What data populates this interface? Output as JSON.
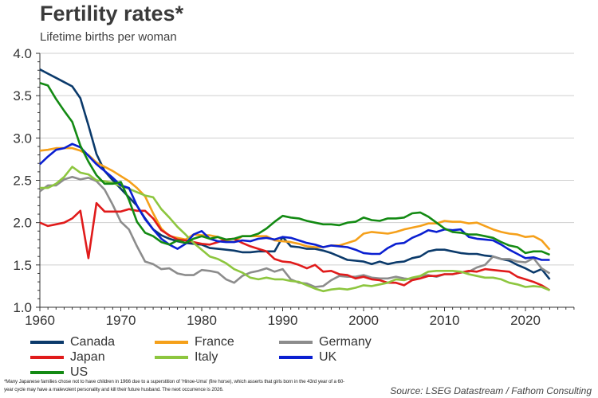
{
  "chart_data": {
    "type": "line",
    "title": "Fertility rates*",
    "subtitle": "Lifetime births per woman",
    "xlabel": "",
    "ylabel": "",
    "xlim": [
      1960,
      2026
    ],
    "ylim": [
      1.0,
      4.0
    ],
    "xticks": [
      1960,
      1970,
      1980,
      1990,
      2000,
      2010,
      2020
    ],
    "yticks": [
      "1.0",
      "1.5",
      "2.0",
      "2.5",
      "3.0",
      "3.5",
      "4.0"
    ],
    "grid": "horizontal",
    "legend_position": "bottom",
    "x": [
      1960,
      1961,
      1962,
      1963,
      1964,
      1965,
      1966,
      1967,
      1968,
      1969,
      1970,
      1971,
      1972,
      1973,
      1974,
      1975,
      1976,
      1977,
      1978,
      1979,
      1980,
      1981,
      1982,
      1983,
      1984,
      1985,
      1986,
      1987,
      1988,
      1989,
      1990,
      1991,
      1992,
      1993,
      1994,
      1995,
      1996,
      1997,
      1998,
      1999,
      2000,
      2001,
      2002,
      2003,
      2004,
      2005,
      2006,
      2007,
      2008,
      2009,
      2010,
      2011,
      2012,
      2013,
      2014,
      2015,
      2016,
      2017,
      2018,
      2019,
      2020,
      2021,
      2022,
      2023
    ],
    "series": [
      {
        "name": "Canada",
        "color": "#0b3a6b",
        "values": [
          3.81,
          3.76,
          3.71,
          3.66,
          3.61,
          3.47,
          3.15,
          2.81,
          2.61,
          2.5,
          2.4,
          2.3,
          2.2,
          2.05,
          1.92,
          1.85,
          1.81,
          1.78,
          1.76,
          1.75,
          1.74,
          1.7,
          1.69,
          1.68,
          1.67,
          1.65,
          1.65,
          1.66,
          1.66,
          1.66,
          1.83,
          1.72,
          1.71,
          1.69,
          1.69,
          1.67,
          1.64,
          1.6,
          1.56,
          1.55,
          1.54,
          1.51,
          1.54,
          1.51,
          1.53,
          1.54,
          1.58,
          1.6,
          1.66,
          1.68,
          1.68,
          1.66,
          1.64,
          1.63,
          1.63,
          1.61,
          1.6,
          1.57,
          1.55,
          1.5,
          1.46,
          1.41,
          1.45,
          1.33
        ]
      },
      {
        "name": "France",
        "color": "#f5a01a",
        "values": [
          2.85,
          2.86,
          2.88,
          2.88,
          2.88,
          2.85,
          2.8,
          2.71,
          2.66,
          2.61,
          2.55,
          2.49,
          2.41,
          2.31,
          2.11,
          1.93,
          1.84,
          1.82,
          1.8,
          1.86,
          1.85,
          1.85,
          1.83,
          1.78,
          1.77,
          1.84,
          1.84,
          1.84,
          1.84,
          1.79,
          1.78,
          1.77,
          1.75,
          1.72,
          1.71,
          1.71,
          1.73,
          1.73,
          1.76,
          1.79,
          1.87,
          1.89,
          1.88,
          1.87,
          1.89,
          1.92,
          1.94,
          1.96,
          1.99,
          1.99,
          2.02,
          2.01,
          2.01,
          1.99,
          2.0,
          1.96,
          1.92,
          1.89,
          1.87,
          1.86,
          1.83,
          1.84,
          1.79,
          1.68
        ]
      },
      {
        "name": "Germany",
        "color": "#8c8c8c",
        "values": [
          2.37,
          2.44,
          2.44,
          2.51,
          2.54,
          2.51,
          2.53,
          2.49,
          2.39,
          2.21,
          2.01,
          1.92,
          1.72,
          1.54,
          1.51,
          1.45,
          1.46,
          1.4,
          1.38,
          1.38,
          1.44,
          1.43,
          1.41,
          1.33,
          1.29,
          1.37,
          1.41,
          1.43,
          1.46,
          1.42,
          1.45,
          1.33,
          1.29,
          1.28,
          1.24,
          1.25,
          1.32,
          1.37,
          1.36,
          1.36,
          1.38,
          1.35,
          1.34,
          1.34,
          1.36,
          1.34,
          1.33,
          1.37,
          1.38,
          1.36,
          1.39,
          1.39,
          1.41,
          1.42,
          1.47,
          1.5,
          1.6,
          1.57,
          1.57,
          1.54,
          1.53,
          1.58,
          1.46,
          1.4
        ]
      },
      {
        "name": "Japan",
        "color": "#e01b1b",
        "values": [
          2.0,
          1.96,
          1.98,
          2.0,
          2.05,
          2.14,
          1.58,
          2.23,
          2.13,
          2.13,
          2.13,
          2.16,
          2.14,
          2.14,
          2.05,
          1.91,
          1.85,
          1.8,
          1.79,
          1.77,
          1.75,
          1.74,
          1.77,
          1.8,
          1.81,
          1.76,
          1.72,
          1.69,
          1.66,
          1.57,
          1.54,
          1.53,
          1.5,
          1.46,
          1.5,
          1.42,
          1.43,
          1.39,
          1.38,
          1.34,
          1.36,
          1.33,
          1.32,
          1.29,
          1.29,
          1.26,
          1.32,
          1.34,
          1.37,
          1.37,
          1.39,
          1.39,
          1.41,
          1.43,
          1.42,
          1.45,
          1.44,
          1.43,
          1.42,
          1.36,
          1.33,
          1.3,
          1.26,
          1.2
        ]
      },
      {
        "name": "Italy",
        "color": "#8dc63f",
        "values": [
          2.41,
          2.41,
          2.46,
          2.54,
          2.66,
          2.59,
          2.57,
          2.5,
          2.49,
          2.47,
          2.43,
          2.4,
          2.36,
          2.32,
          2.3,
          2.16,
          2.06,
          1.95,
          1.86,
          1.76,
          1.68,
          1.6,
          1.57,
          1.52,
          1.45,
          1.41,
          1.35,
          1.33,
          1.35,
          1.33,
          1.33,
          1.31,
          1.3,
          1.26,
          1.22,
          1.19,
          1.21,
          1.22,
          1.21,
          1.23,
          1.26,
          1.25,
          1.27,
          1.29,
          1.33,
          1.32,
          1.35,
          1.37,
          1.42,
          1.43,
          1.43,
          1.43,
          1.42,
          1.39,
          1.37,
          1.35,
          1.35,
          1.33,
          1.29,
          1.27,
          1.24,
          1.25,
          1.24,
          1.2
        ]
      },
      {
        "name": "UK",
        "color": "#0a1fd1",
        "values": [
          2.69,
          2.78,
          2.86,
          2.88,
          2.93,
          2.89,
          2.79,
          2.69,
          2.61,
          2.53,
          2.44,
          2.41,
          2.2,
          2.04,
          1.92,
          1.81,
          1.74,
          1.69,
          1.75,
          1.86,
          1.9,
          1.81,
          1.78,
          1.77,
          1.77,
          1.79,
          1.78,
          1.81,
          1.82,
          1.8,
          1.83,
          1.82,
          1.79,
          1.76,
          1.74,
          1.71,
          1.73,
          1.72,
          1.71,
          1.68,
          1.64,
          1.63,
          1.63,
          1.7,
          1.75,
          1.76,
          1.82,
          1.86,
          1.91,
          1.89,
          1.92,
          1.91,
          1.92,
          1.83,
          1.81,
          1.8,
          1.79,
          1.74,
          1.68,
          1.63,
          1.58,
          1.59,
          1.56,
          1.56
        ]
      },
      {
        "name": "US",
        "color": "#138a13",
        "values": [
          3.65,
          3.62,
          3.46,
          3.32,
          3.19,
          2.91,
          2.72,
          2.56,
          2.46,
          2.46,
          2.48,
          2.27,
          2.01,
          1.88,
          1.84,
          1.77,
          1.74,
          1.79,
          1.76,
          1.81,
          1.84,
          1.81,
          1.83,
          1.8,
          1.81,
          1.84,
          1.84,
          1.87,
          1.93,
          2.01,
          2.08,
          2.06,
          2.05,
          2.02,
          2.0,
          1.98,
          1.98,
          1.97,
          2.0,
          2.01,
          2.06,
          2.03,
          2.02,
          2.05,
          2.05,
          2.06,
          2.11,
          2.12,
          2.07,
          2.0,
          1.93,
          1.89,
          1.88,
          1.86,
          1.86,
          1.84,
          1.82,
          1.77,
          1.73,
          1.71,
          1.64,
          1.66,
          1.66,
          1.62
        ]
      }
    ],
    "annotations": []
  },
  "footnote": "*Many Japanese families chose not to have children in 1966 due to a superstition of 'Hinoe-Uma' (fire horse), which asserts that girls born in the 43rd year of a 60-year cycle may have a malevolent personality and kill their future husband. The next occurrence is 2026.",
  "source": "Source: LSEG Datastream / Fathom Consulting"
}
